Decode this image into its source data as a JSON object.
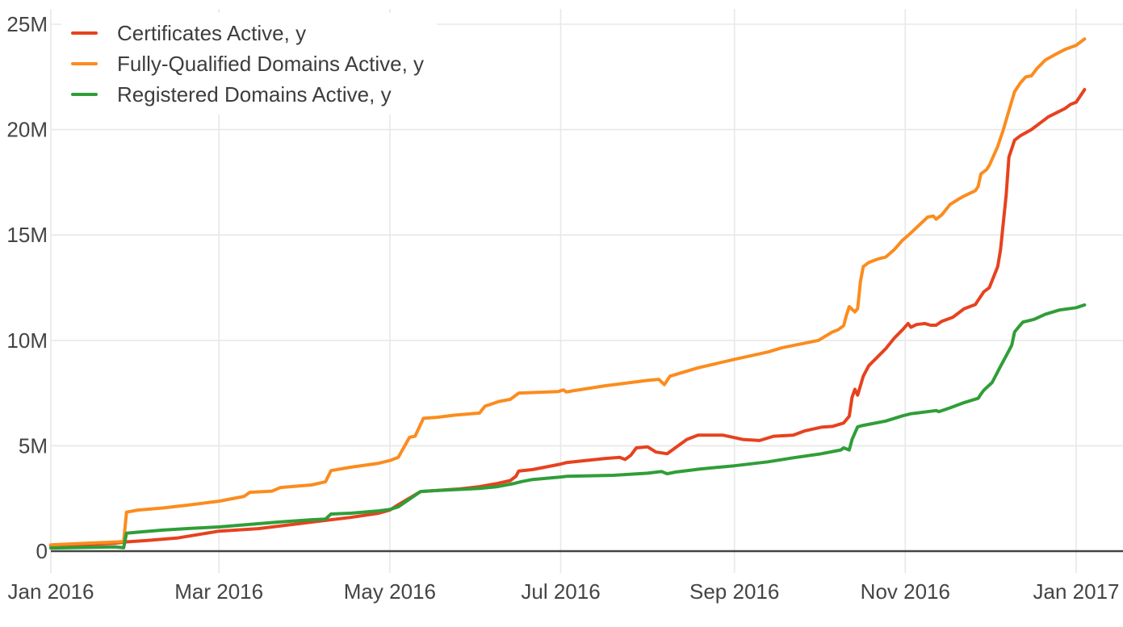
{
  "chart_data": {
    "type": "line",
    "title": "",
    "grid": true,
    "legend_position": "top-left",
    "colors": {
      "text": "#444444",
      "grid": "#e8e8e8",
      "zero_line": "#444444",
      "background": "#ffffff"
    },
    "x_axis": {
      "tick_labels": [
        "Jan 2016",
        "Mar 2016",
        "May 2016",
        "Jul 2016",
        "Sep 2016",
        "Nov 2016",
        "Jan 2017"
      ],
      "tick_dates": [
        "2016-01-01",
        "2016-03-01",
        "2016-05-01",
        "2016-07-01",
        "2016-09-01",
        "2016-11-01",
        "2017-01-01"
      ],
      "range_dates": [
        "2016-01-01",
        "2017-01-05"
      ]
    },
    "y_axis": {
      "tick_labels": [
        "0",
        "5M",
        "10M",
        "15M",
        "20M",
        "25M"
      ],
      "tick_values": [
        0,
        5,
        10,
        15,
        20,
        25
      ],
      "unit": "millions",
      "range": [
        0,
        25
      ]
    },
    "series": [
      {
        "name": "Certificates Active, y",
        "color": "#e6421f",
        "points": [
          [
            "2016-01-01",
            0.25
          ],
          [
            "2016-01-11",
            0.3
          ],
          [
            "2016-01-24",
            0.38
          ],
          [
            "2016-01-28",
            0.44
          ],
          [
            "2016-02-04",
            0.5
          ],
          [
            "2016-02-15",
            0.62
          ],
          [
            "2016-03-01",
            0.95
          ],
          [
            "2016-03-15",
            1.07
          ],
          [
            "2016-04-03",
            1.38
          ],
          [
            "2016-04-17",
            1.6
          ],
          [
            "2016-04-27",
            1.8
          ],
          [
            "2016-05-01",
            1.95
          ],
          [
            "2016-05-04",
            2.2
          ],
          [
            "2016-05-12",
            2.83
          ],
          [
            "2016-05-17",
            2.87
          ],
          [
            "2016-05-26",
            2.95
          ],
          [
            "2016-06-02",
            3.06
          ],
          [
            "2016-06-08",
            3.2
          ],
          [
            "2016-06-13",
            3.35
          ],
          [
            "2016-06-15",
            3.55
          ],
          [
            "2016-06-16",
            3.8
          ],
          [
            "2016-06-21",
            3.87
          ],
          [
            "2016-07-01",
            4.13
          ],
          [
            "2016-07-03",
            4.2
          ],
          [
            "2016-07-17",
            4.4
          ],
          [
            "2016-07-22",
            4.45
          ],
          [
            "2016-07-24",
            4.35
          ],
          [
            "2016-07-26",
            4.55
          ],
          [
            "2016-07-28",
            4.9
          ],
          [
            "2016-08-01",
            4.95
          ],
          [
            "2016-08-04",
            4.7
          ],
          [
            "2016-08-08",
            4.62
          ],
          [
            "2016-08-15",
            5.3
          ],
          [
            "2016-08-19",
            5.5
          ],
          [
            "2016-08-28",
            5.5
          ],
          [
            "2016-09-04",
            5.3
          ],
          [
            "2016-09-10",
            5.25
          ],
          [
            "2016-09-15",
            5.45
          ],
          [
            "2016-09-22",
            5.5
          ],
          [
            "2016-09-26",
            5.7
          ],
          [
            "2016-10-02",
            5.88
          ],
          [
            "2016-10-06",
            5.92
          ],
          [
            "2016-10-10",
            6.08
          ],
          [
            "2016-10-12",
            6.4
          ],
          [
            "2016-10-13",
            7.3
          ],
          [
            "2016-10-14",
            7.68
          ],
          [
            "2016-10-15",
            7.4
          ],
          [
            "2016-10-17",
            8.3
          ],
          [
            "2016-10-19",
            8.8
          ],
          [
            "2016-10-22",
            9.2
          ],
          [
            "2016-10-25",
            9.6
          ],
          [
            "2016-10-28",
            10.1
          ],
          [
            "2016-10-31",
            10.5
          ],
          [
            "2016-11-02",
            10.8
          ],
          [
            "2016-11-03",
            10.62
          ],
          [
            "2016-11-05",
            10.75
          ],
          [
            "2016-11-08",
            10.8
          ],
          [
            "2016-11-10",
            10.72
          ],
          [
            "2016-11-12",
            10.72
          ],
          [
            "2016-11-14",
            10.9
          ],
          [
            "2016-11-18",
            11.1
          ],
          [
            "2016-11-22",
            11.5
          ],
          [
            "2016-11-26",
            11.7
          ],
          [
            "2016-11-29",
            12.3
          ],
          [
            "2016-12-01",
            12.5
          ],
          [
            "2016-12-04",
            13.5
          ],
          [
            "2016-12-05",
            14.3
          ],
          [
            "2016-12-07",
            16.9
          ],
          [
            "2016-12-08",
            18.7
          ],
          [
            "2016-12-10",
            19.5
          ],
          [
            "2016-12-12",
            19.7
          ],
          [
            "2016-12-16",
            20.0
          ],
          [
            "2016-12-20",
            20.4
          ],
          [
            "2016-12-22",
            20.6
          ],
          [
            "2016-12-25",
            20.8
          ],
          [
            "2016-12-28",
            21.0
          ],
          [
            "2016-12-30",
            21.2
          ],
          [
            "2017-01-01",
            21.3
          ],
          [
            "2017-01-02",
            21.5
          ],
          [
            "2017-01-04",
            21.9
          ]
        ]
      },
      {
        "name": "Fully-Qualified Domains Active, y",
        "color": "#fb8c1e",
        "points": [
          [
            "2016-01-01",
            0.3
          ],
          [
            "2016-01-11",
            0.36
          ],
          [
            "2016-01-25",
            0.44
          ],
          [
            "2016-01-27",
            0.46
          ],
          [
            "2016-01-28",
            1.85
          ],
          [
            "2016-02-01",
            1.95
          ],
          [
            "2016-02-10",
            2.05
          ],
          [
            "2016-02-20",
            2.2
          ],
          [
            "2016-03-01",
            2.37
          ],
          [
            "2016-03-10",
            2.6
          ],
          [
            "2016-03-12",
            2.79
          ],
          [
            "2016-03-20",
            2.85
          ],
          [
            "2016-03-23",
            3.02
          ],
          [
            "2016-04-03",
            3.14
          ],
          [
            "2016-04-08",
            3.29
          ],
          [
            "2016-04-10",
            3.82
          ],
          [
            "2016-04-17",
            3.98
          ],
          [
            "2016-04-27",
            4.17
          ],
          [
            "2016-05-01",
            4.3
          ],
          [
            "2016-05-04",
            4.45
          ],
          [
            "2016-05-08",
            5.4
          ],
          [
            "2016-05-10",
            5.45
          ],
          [
            "2016-05-13",
            6.3
          ],
          [
            "2016-05-18",
            6.35
          ],
          [
            "2016-05-24",
            6.45
          ],
          [
            "2016-06-02",
            6.55
          ],
          [
            "2016-06-04",
            6.88
          ],
          [
            "2016-06-09",
            7.1
          ],
          [
            "2016-06-13",
            7.2
          ],
          [
            "2016-06-16",
            7.5
          ],
          [
            "2016-06-30",
            7.57
          ],
          [
            "2016-07-02",
            7.65
          ],
          [
            "2016-07-03",
            7.55
          ],
          [
            "2016-07-05",
            7.6
          ],
          [
            "2016-07-17",
            7.85
          ],
          [
            "2016-08-01",
            8.1
          ],
          [
            "2016-08-05",
            8.15
          ],
          [
            "2016-08-07",
            7.9
          ],
          [
            "2016-08-09",
            8.3
          ],
          [
            "2016-08-19",
            8.7
          ],
          [
            "2016-09-01",
            9.1
          ],
          [
            "2016-09-13",
            9.45
          ],
          [
            "2016-09-18",
            9.65
          ],
          [
            "2016-10-01",
            10.0
          ],
          [
            "2016-10-06",
            10.4
          ],
          [
            "2016-10-08",
            10.5
          ],
          [
            "2016-10-10",
            10.7
          ],
          [
            "2016-10-11",
            11.2
          ],
          [
            "2016-10-12",
            11.6
          ],
          [
            "2016-10-14",
            11.35
          ],
          [
            "2016-10-15",
            11.5
          ],
          [
            "2016-10-16",
            12.8
          ],
          [
            "2016-10-17",
            13.5
          ],
          [
            "2016-10-19",
            13.7
          ],
          [
            "2016-10-22",
            13.85
          ],
          [
            "2016-10-25",
            13.95
          ],
          [
            "2016-10-28",
            14.3
          ],
          [
            "2016-10-31",
            14.75
          ],
          [
            "2016-11-03",
            15.1
          ],
          [
            "2016-11-05",
            15.35
          ],
          [
            "2016-11-07",
            15.6
          ],
          [
            "2016-11-09",
            15.85
          ],
          [
            "2016-11-11",
            15.9
          ],
          [
            "2016-11-12",
            15.75
          ],
          [
            "2016-11-14",
            15.95
          ],
          [
            "2016-11-17",
            16.45
          ],
          [
            "2016-11-20",
            16.7
          ],
          [
            "2016-11-22",
            16.85
          ],
          [
            "2016-11-26",
            17.1
          ],
          [
            "2016-11-27",
            17.3
          ],
          [
            "2016-11-28",
            17.9
          ],
          [
            "2016-11-30",
            18.1
          ],
          [
            "2016-12-01",
            18.3
          ],
          [
            "2016-12-04",
            19.2
          ],
          [
            "2016-12-06",
            20.0
          ],
          [
            "2016-12-08",
            20.9
          ],
          [
            "2016-12-10",
            21.8
          ],
          [
            "2016-12-12",
            22.2
          ],
          [
            "2016-12-14",
            22.5
          ],
          [
            "2016-12-16",
            22.55
          ],
          [
            "2016-12-18",
            22.9
          ],
          [
            "2016-12-21",
            23.3
          ],
          [
            "2016-12-25",
            23.6
          ],
          [
            "2016-12-28",
            23.8
          ],
          [
            "2017-01-01",
            24.0
          ],
          [
            "2017-01-02",
            24.1
          ],
          [
            "2017-01-04",
            24.3
          ]
        ]
      },
      {
        "name": "Registered Domains Active, y",
        "color": "#2f9e38",
        "points": [
          [
            "2016-01-01",
            0.15
          ],
          [
            "2016-01-15",
            0.18
          ],
          [
            "2016-01-24",
            0.2
          ],
          [
            "2016-01-27",
            0.16
          ],
          [
            "2016-01-28",
            0.85
          ],
          [
            "2016-02-01",
            0.9
          ],
          [
            "2016-02-10",
            1.0
          ],
          [
            "2016-02-20",
            1.08
          ],
          [
            "2016-03-01",
            1.15
          ],
          [
            "2016-03-15",
            1.3
          ],
          [
            "2016-03-22",
            1.38
          ],
          [
            "2016-04-03",
            1.49
          ],
          [
            "2016-04-08",
            1.52
          ],
          [
            "2016-04-10",
            1.76
          ],
          [
            "2016-04-17",
            1.8
          ],
          [
            "2016-04-27",
            1.91
          ],
          [
            "2016-05-01",
            1.98
          ],
          [
            "2016-05-04",
            2.1
          ],
          [
            "2016-05-12",
            2.83
          ],
          [
            "2016-05-17",
            2.87
          ],
          [
            "2016-05-26",
            2.93
          ],
          [
            "2016-06-02",
            2.98
          ],
          [
            "2016-06-08",
            3.05
          ],
          [
            "2016-06-14",
            3.2
          ],
          [
            "2016-06-17",
            3.3
          ],
          [
            "2016-06-21",
            3.4
          ],
          [
            "2016-07-01",
            3.52
          ],
          [
            "2016-07-03",
            3.55
          ],
          [
            "2016-07-20",
            3.6
          ],
          [
            "2016-08-01",
            3.7
          ],
          [
            "2016-08-06",
            3.78
          ],
          [
            "2016-08-08",
            3.67
          ],
          [
            "2016-08-11",
            3.75
          ],
          [
            "2016-08-20",
            3.9
          ],
          [
            "2016-09-01",
            4.05
          ],
          [
            "2016-09-13",
            4.24
          ],
          [
            "2016-09-22",
            4.43
          ],
          [
            "2016-10-02",
            4.62
          ],
          [
            "2016-10-09",
            4.8
          ],
          [
            "2016-10-10",
            4.9
          ],
          [
            "2016-10-12",
            4.8
          ],
          [
            "2016-10-13",
            5.3
          ],
          [
            "2016-10-15",
            5.9
          ],
          [
            "2016-10-17",
            5.97
          ],
          [
            "2016-10-25",
            6.17
          ],
          [
            "2016-10-31",
            6.42
          ],
          [
            "2016-11-03",
            6.52
          ],
          [
            "2016-11-05",
            6.55
          ],
          [
            "2016-11-12",
            6.67
          ],
          [
            "2016-11-13",
            6.62
          ],
          [
            "2016-11-17",
            6.8
          ],
          [
            "2016-11-22",
            7.05
          ],
          [
            "2016-11-27",
            7.25
          ],
          [
            "2016-11-28",
            7.45
          ],
          [
            "2016-11-29",
            7.63
          ],
          [
            "2016-12-02",
            8.0
          ],
          [
            "2016-12-05",
            8.77
          ],
          [
            "2016-12-07",
            9.27
          ],
          [
            "2016-12-09",
            9.77
          ],
          [
            "2016-12-10",
            10.4
          ],
          [
            "2016-12-12",
            10.72
          ],
          [
            "2016-12-13",
            10.87
          ],
          [
            "2016-12-17",
            11.0
          ],
          [
            "2016-12-21",
            11.24
          ],
          [
            "2016-12-26",
            11.44
          ],
          [
            "2017-01-01",
            11.55
          ],
          [
            "2017-01-04",
            11.68
          ]
        ]
      }
    ]
  }
}
